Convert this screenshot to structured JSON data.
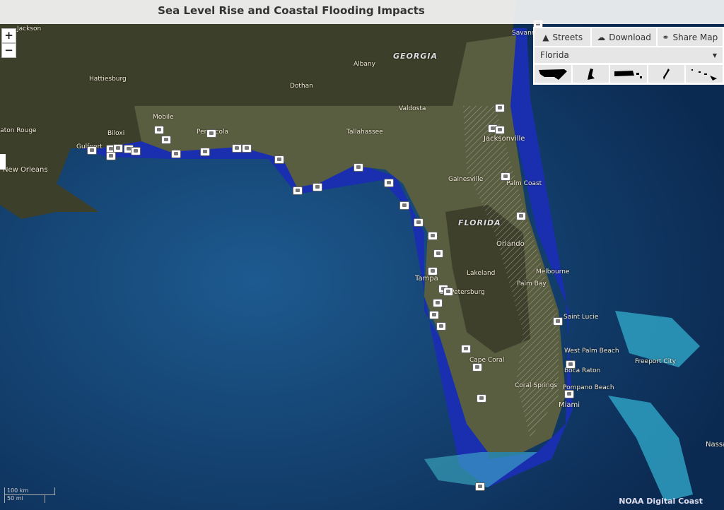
{
  "header": {
    "title": "Sea Level Rise and Coastal Flooding Impacts"
  },
  "zoom": {
    "in": "+",
    "out": "−"
  },
  "toolbar": {
    "streets": "Streets",
    "streets_icon": "road-icon",
    "download": "Download",
    "download_icon": "cloud-download-icon",
    "share": "Share Map",
    "share_icon": "link-icon"
  },
  "region_select": {
    "value": "Florida"
  },
  "regions": [
    {
      "name": "contiguous-us"
    },
    {
      "name": "alaska"
    },
    {
      "name": "puerto-rico"
    },
    {
      "name": "guam"
    },
    {
      "name": "hawaii"
    }
  ],
  "labels": {
    "georgia": "GEORGIA",
    "florida": "FLORIDA",
    "jackson": "Jackson",
    "hattiesburg": "Hattiesburg",
    "mobile": "Mobile",
    "biloxi": "Biloxi",
    "pensacola": "Pensacola",
    "gulfport": "Gulfport",
    "baton_rouge": "Baton Rouge",
    "new_orleans": "New Orleans",
    "dothan": "Dothan",
    "albany": "Albany",
    "valdosta": "Valdosta",
    "tallahassee": "Tallahassee",
    "savannah": "Savannah",
    "jacksonville": "Jacksonville",
    "gainesville": "Gainesville",
    "palm_coast": "Palm Coast",
    "orlando": "Orlando",
    "lakeland": "Lakeland",
    "melbourne": "Melbourne",
    "palm_bay": "Palm Bay",
    "tampa": "Tampa",
    "st_petersburg": "St. Petersburg",
    "saint_lucie": "Saint Lucie",
    "west_palm": "West Palm Beach",
    "boca": "Boca Raton",
    "pompano": "Pompano Beach",
    "coral_springs": "Coral Springs",
    "cape_coral": "Cape Coral",
    "miami": "Miami",
    "freeport": "Freeport City",
    "nassau": "Nassau"
  },
  "scale": {
    "km": "100 km",
    "mi": "50 mi"
  },
  "attribution": "NOAA Digital Coast",
  "colors": {
    "ocean": "#123d6e",
    "flood": "#1a2fb0",
    "land": "#5a5e40"
  }
}
